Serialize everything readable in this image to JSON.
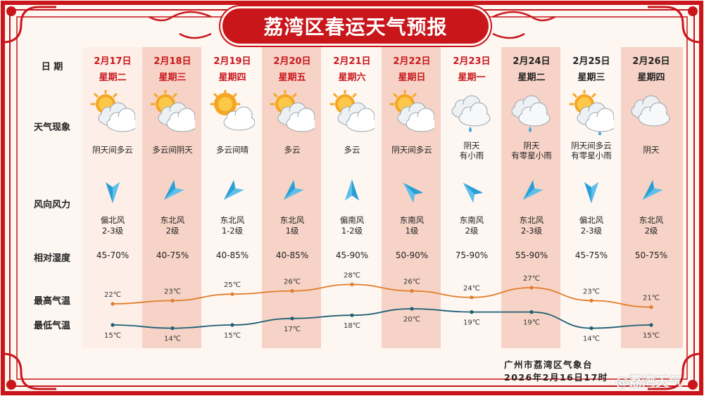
{
  "title": "荔湾区春运天气预报",
  "row_labels": {
    "date": "日 期",
    "weather": "天气现象",
    "wind": "风向风力",
    "humidity": "相对湿度",
    "high": "最高气温",
    "low": "最低气温"
  },
  "days": [
    {
      "date": "2月17日",
      "weekday": "星期二",
      "weekend_color": "red",
      "icon": "cloudy-sun-icon",
      "cond1": "阴天间多云",
      "cond2": "",
      "wind_dir": "偏北风",
      "wind_level": "2-3级",
      "arrow": "south-arrow-icon",
      "humidity": "45-70%",
      "high": "22℃",
      "low": "15℃",
      "high_v": 22,
      "low_v": 15
    },
    {
      "date": "2月18日",
      "weekday": "星期三",
      "weekend_color": "red",
      "icon": "cloudy-sun-icon",
      "cond1": "多云间阴天",
      "cond2": "",
      "wind_dir": "东北风",
      "wind_level": "2级",
      "arrow": "southwest-arrow-icon",
      "humidity": "40-75%",
      "high": "23℃",
      "low": "14℃",
      "high_v": 23,
      "low_v": 14
    },
    {
      "date": "2月19日",
      "weekday": "星期四",
      "weekend_color": "red",
      "icon": "sunny-cloud-icon",
      "cond1": "多云间晴",
      "cond2": "",
      "wind_dir": "东北风",
      "wind_level": "1-2级",
      "arrow": "southwest-arrow-icon",
      "humidity": "40-85%",
      "high": "25℃",
      "low": "15℃",
      "high_v": 25,
      "low_v": 15
    },
    {
      "date": "2月20日",
      "weekday": "星期五",
      "weekend_color": "red",
      "icon": "cloudy-sun-icon",
      "cond1": "多云",
      "cond2": "",
      "wind_dir": "东北风",
      "wind_level": "1级",
      "arrow": "southwest-arrow-icon",
      "humidity": "40-85%",
      "high": "26℃",
      "low": "17℃",
      "high_v": 26,
      "low_v": 17
    },
    {
      "date": "2月21日",
      "weekday": "星期六",
      "weekend_color": "red",
      "icon": "cloudy-sun-icon",
      "cond1": "多云",
      "cond2": "",
      "wind_dir": "偏南风",
      "wind_level": "1-2级",
      "arrow": "north-arrow-icon",
      "humidity": "45-90%",
      "high": "28℃",
      "low": "18℃",
      "high_v": 28,
      "low_v": 18
    },
    {
      "date": "2月22日",
      "weekday": "星期日",
      "weekend_color": "red",
      "icon": "cloudy-sun-icon",
      "cond1": "阴天间多云",
      "cond2": "",
      "wind_dir": "东南风",
      "wind_level": "1级",
      "arrow": "northwest-arrow-icon",
      "humidity": "50-90%",
      "high": "26℃",
      "low": "20℃",
      "high_v": 26,
      "low_v": 20
    },
    {
      "date": "2月23日",
      "weekday": "星期一",
      "weekend_color": "red",
      "icon": "rain-cloud-icon",
      "cond1": "阴天",
      "cond2": "有小雨",
      "wind_dir": "东南风",
      "wind_level": "2级",
      "arrow": "northwest-arrow-icon",
      "humidity": "75-90%",
      "high": "24℃",
      "low": "19℃",
      "high_v": 24,
      "low_v": 19
    },
    {
      "date": "2月24日",
      "weekday": "星期二",
      "weekend_color": "black",
      "icon": "rain-cloud-icon",
      "cond1": "阴天",
      "cond2": "有零星小雨",
      "wind_dir": "东北风",
      "wind_level": "2-3级",
      "arrow": "southwest-arrow-icon",
      "humidity": "55-90%",
      "high": "27℃",
      "low": "19℃",
      "high_v": 27,
      "low_v": 19
    },
    {
      "date": "2月25日",
      "weekday": "星期三",
      "weekend_color": "black",
      "icon": "sun-rain-cloud-icon",
      "cond1": "阴天间多云",
      "cond2": "有零星小雨",
      "wind_dir": "偏北风",
      "wind_level": "2-3级",
      "arrow": "south-arrow-icon",
      "humidity": "45-75%",
      "high": "23℃",
      "low": "14℃",
      "high_v": 23,
      "low_v": 14
    },
    {
      "date": "2月26日",
      "weekday": "星期四",
      "weekend_color": "black",
      "icon": "cloud-icon",
      "cond1": "阴天",
      "cond2": "",
      "wind_dir": "东北风",
      "wind_level": "2级",
      "arrow": "southwest-arrow-icon",
      "humidity": "50-75%",
      "high": "21℃",
      "low": "15℃",
      "high_v": 21,
      "low_v": 15
    }
  ],
  "footer": {
    "org": "广州市荔湾区气象台",
    "time": "2026年2月16日17时"
  },
  "watermark": "@荔湾天气",
  "colors": {
    "red": "#c8161b",
    "high_line": "#e27d2a",
    "low_line": "#1e5f74",
    "band": "#f6d3c6"
  }
}
